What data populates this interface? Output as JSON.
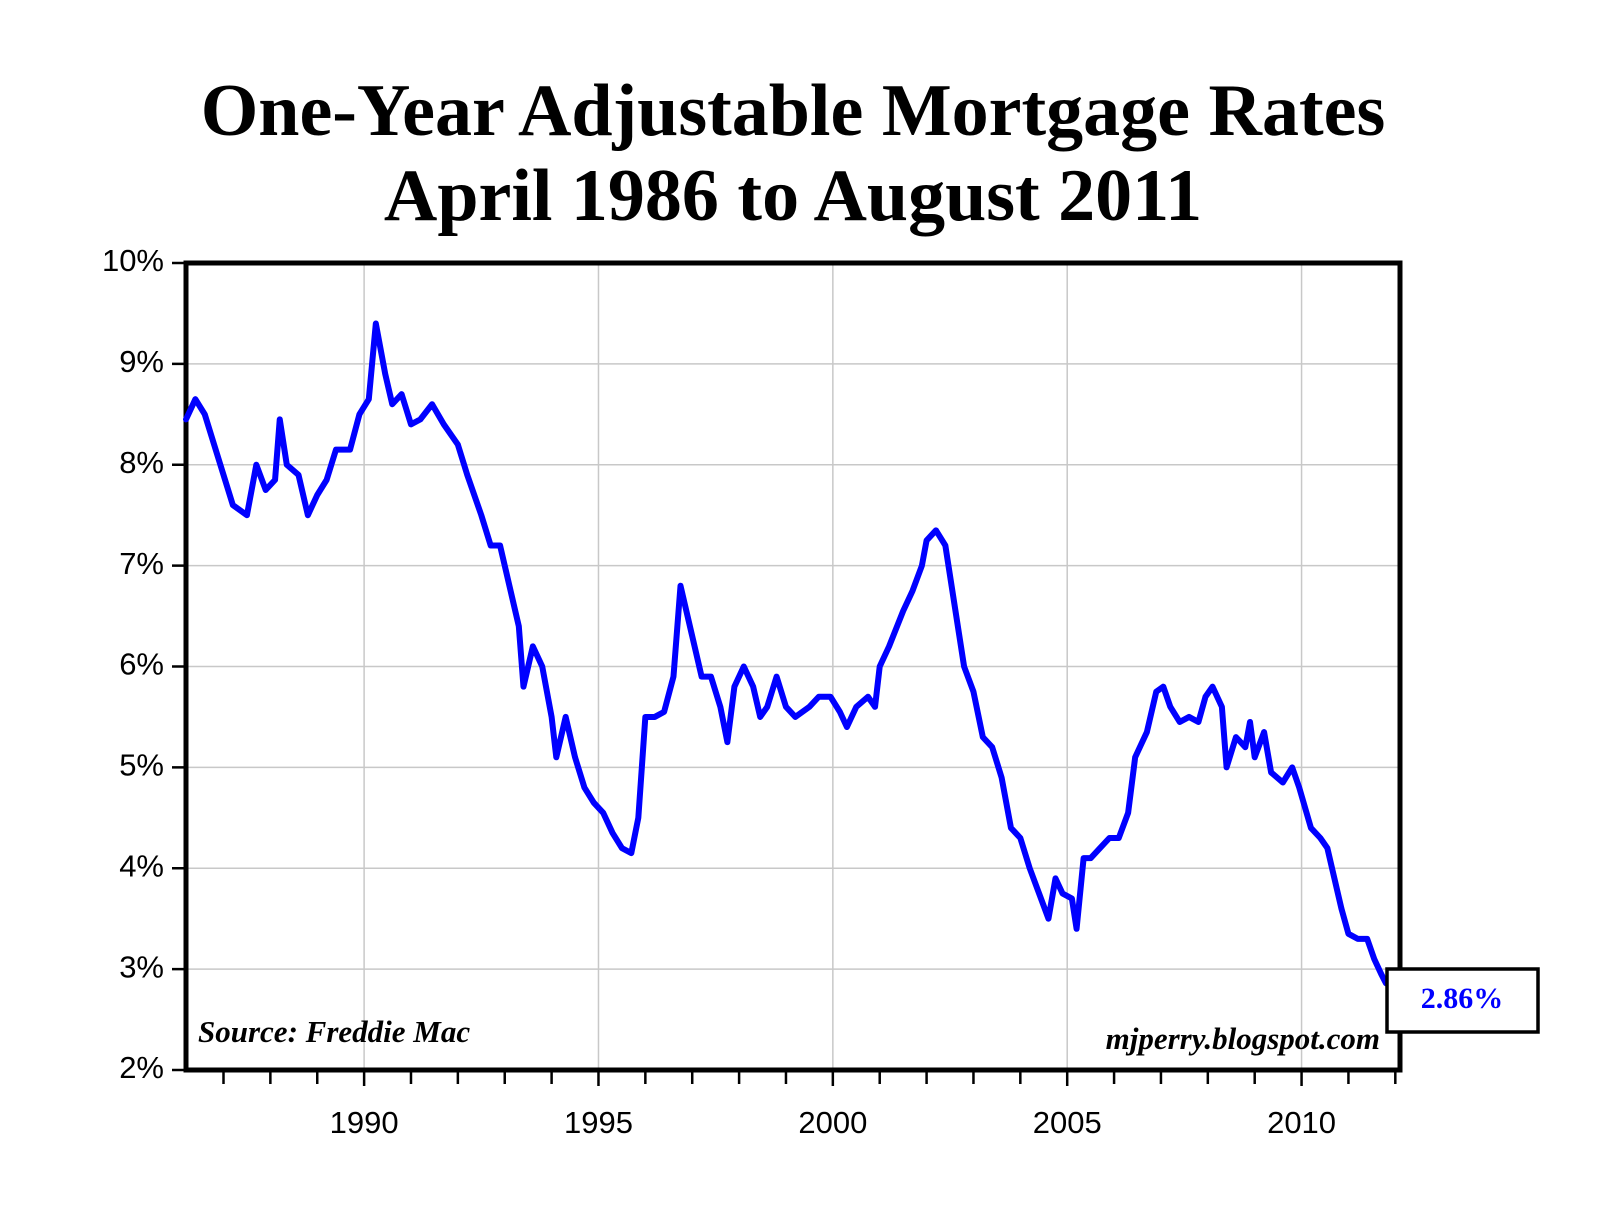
{
  "chart_data": {
    "type": "line",
    "title": "One-Year Adjustable Mortgage Rates",
    "subtitle": "April 1986 to August 2011",
    "annotations": [
      "Source: Freddie Mac",
      "mjperry.blogspot.com"
    ],
    "end_label": "2.86%",
    "color": "#0000ff",
    "grid": true,
    "xlim": [
      1986.2,
      2012.1
    ],
    "xticks": [
      1990,
      1995,
      2000,
      2005,
      2010
    ],
    "xminorticks": [
      1987,
      1988,
      1989,
      1991,
      1992,
      1993,
      1994,
      1996,
      1997,
      1998,
      1999,
      2001,
      2002,
      2003,
      2004,
      2006,
      2007,
      2008,
      2009,
      2011,
      2012
    ],
    "ylim": [
      2,
      10
    ],
    "yticks": [
      {
        "value": 2,
        "label": "2%"
      },
      {
        "value": 3,
        "label": "3%"
      },
      {
        "value": 4,
        "label": "4%"
      },
      {
        "value": 5,
        "label": "5%"
      },
      {
        "value": 6,
        "label": "6%"
      },
      {
        "value": 7,
        "label": "7%"
      },
      {
        "value": 8,
        "label": "8%"
      },
      {
        "value": 9,
        "label": "9%"
      },
      {
        "value": 10,
        "label": "10%"
      }
    ],
    "x": [
      1986.2,
      1986.4,
      1986.6,
      1986.8,
      1987.0,
      1987.2,
      1987.5,
      1987.7,
      1987.9,
      1988.1,
      1988.2,
      1988.35,
      1988.6,
      1988.8,
      1989.0,
      1989.2,
      1989.4,
      1989.7,
      1989.9,
      1990.1,
      1990.25,
      1990.45,
      1990.6,
      1990.8,
      1991.0,
      1991.2,
      1991.45,
      1991.7,
      1992.0,
      1992.2,
      1992.5,
      1992.7,
      1992.9,
      1993.1,
      1993.3,
      1993.4,
      1993.6,
      1993.8,
      1994.0,
      1994.1,
      1994.3,
      1994.5,
      1994.7,
      1994.9,
      1995.1,
      1995.3,
      1995.5,
      1995.7,
      1995.85,
      1996.0,
      1996.2,
      1996.4,
      1996.6,
      1996.75,
      1996.9,
      1997.0,
      1997.2,
      1997.4,
      1997.6,
      1997.75,
      1997.9,
      1998.1,
      1998.3,
      1998.45,
      1998.6,
      1998.8,
      1999.0,
      1999.2,
      1999.5,
      1999.7,
      1999.95,
      2000.15,
      2000.3,
      2000.5,
      2000.75,
      2000.9,
      2001.0,
      2001.2,
      2001.5,
      2001.7,
      2001.9,
      2002.0,
      2002.2,
      2002.4,
      2002.6,
      2002.8,
      2003.0,
      2003.2,
      2003.4,
      2003.6,
      2003.8,
      2004.0,
      2004.2,
      2004.4,
      2004.6,
      2004.75,
      2004.9,
      2005.1,
      2005.2,
      2005.35,
      2005.5,
      2005.7,
      2005.9,
      2006.1,
      2006.3,
      2006.45,
      2006.7,
      2006.9,
      2007.05,
      2007.2,
      2007.4,
      2007.6,
      2007.8,
      2007.95,
      2008.1,
      2008.3,
      2008.4,
      2008.6,
      2008.8,
      2008.9,
      2009.0,
      2009.2,
      2009.35,
      2009.6,
      2009.8,
      2009.95,
      2010.2,
      2010.4,
      2010.55,
      2010.7,
      2010.85,
      2011.0,
      2011.2,
      2011.4,
      2011.55,
      2011.7,
      2011.8
    ],
    "values": [
      8.45,
      8.65,
      8.5,
      8.2,
      7.9,
      7.6,
      7.5,
      8.0,
      7.75,
      7.85,
      8.45,
      8.0,
      7.9,
      7.5,
      7.7,
      7.85,
      8.15,
      8.15,
      8.5,
      8.65,
      9.4,
      8.9,
      8.6,
      8.7,
      8.4,
      8.45,
      8.6,
      8.4,
      8.2,
      7.9,
      7.5,
      7.2,
      7.2,
      6.8,
      6.4,
      5.8,
      6.2,
      6.0,
      5.5,
      5.1,
      5.5,
      5.1,
      4.8,
      4.65,
      4.55,
      4.35,
      4.2,
      4.15,
      4.5,
      5.5,
      5.5,
      5.55,
      5.9,
      6.8,
      6.5,
      6.3,
      5.9,
      5.9,
      5.6,
      5.25,
      5.8,
      6.0,
      5.8,
      5.5,
      5.6,
      5.9,
      5.6,
      5.5,
      5.6,
      5.7,
      5.7,
      5.55,
      5.4,
      5.6,
      5.7,
      5.6,
      6.0,
      6.2,
      6.55,
      6.75,
      7.0,
      7.25,
      7.35,
      7.2,
      6.6,
      6.0,
      5.75,
      5.3,
      5.2,
      4.9,
      4.4,
      4.3,
      4.0,
      3.75,
      3.5,
      3.9,
      3.75,
      3.7,
      3.4,
      4.1,
      4.1,
      4.2,
      4.3,
      4.3,
      4.55,
      5.1,
      5.35,
      5.75,
      5.8,
      5.6,
      5.45,
      5.5,
      5.45,
      5.7,
      5.8,
      5.6,
      5.0,
      5.3,
      5.2,
      5.45,
      5.1,
      5.35,
      4.95,
      4.85,
      5.0,
      4.8,
      4.4,
      4.3,
      4.2,
      3.9,
      3.6,
      3.35,
      3.3,
      3.3,
      3.1,
      2.95,
      2.86
    ]
  }
}
